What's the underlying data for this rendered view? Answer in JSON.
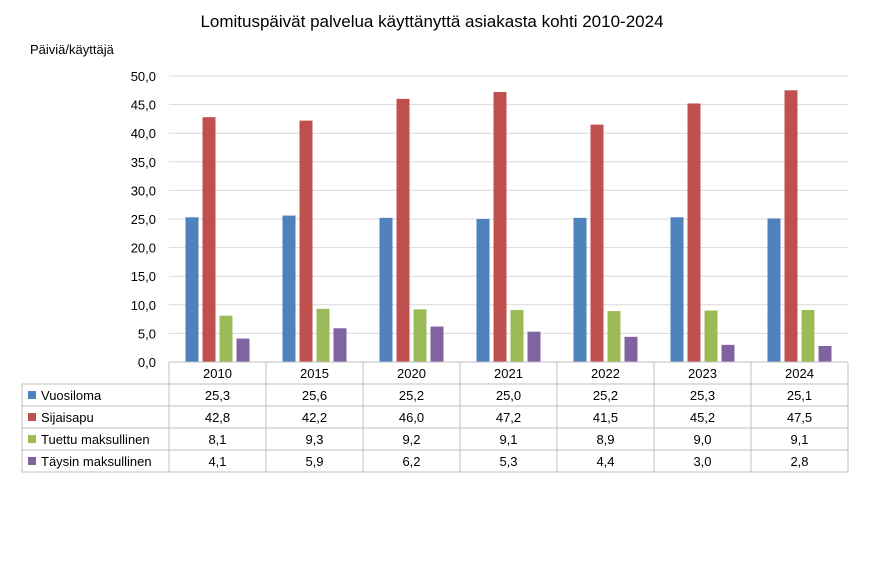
{
  "chart_data": {
    "type": "bar",
    "title": "Lomituspäivät palvelua käyttänyttä asiakasta kohti 2010-2024",
    "ylabel": "Päiviä/käyttäjä",
    "xlabel": "",
    "ylim": [
      0,
      50
    ],
    "ytick_step": 5,
    "ytick_labels": [
      "0,0",
      "5,0",
      "10,0",
      "15,0",
      "20,0",
      "25,0",
      "30,0",
      "35,0",
      "40,0",
      "45,0",
      "50,0"
    ],
    "grid": true,
    "legend": "data-table",
    "categories": [
      "2010",
      "2015",
      "2020",
      "2021",
      "2022",
      "2023",
      "2024"
    ],
    "series": [
      {
        "name": "Vuosiloma",
        "color": "#4f81bd",
        "values": [
          25.3,
          25.6,
          25.2,
          25.0,
          25.2,
          25.3,
          25.1
        ],
        "labels": [
          "25,3",
          "25,6",
          "25,2",
          "25,0",
          "25,2",
          "25,3",
          "25,1"
        ]
      },
      {
        "name": "Sijaisapu",
        "color": "#c0504d",
        "values": [
          42.8,
          42.2,
          46.0,
          47.2,
          41.5,
          45.2,
          47.5
        ],
        "labels": [
          "42,8",
          "42,2",
          "46,0",
          "47,2",
          "41,5",
          "45,2",
          "47,5"
        ]
      },
      {
        "name": "Tuettu maksullinen",
        "color": "#9bbb59",
        "values": [
          8.1,
          9.3,
          9.2,
          9.1,
          8.9,
          9.0,
          9.1
        ],
        "labels": [
          "8,1",
          "9,3",
          "9,2",
          "9,1",
          "8,9",
          "9,0",
          "9,1"
        ]
      },
      {
        "name": "Täysin maksullinen",
        "color": "#8064a2",
        "values": [
          4.1,
          5.9,
          6.2,
          5.3,
          4.4,
          3.0,
          2.8
        ],
        "labels": [
          "4,1",
          "5,9",
          "6,2",
          "5,3",
          "4,4",
          "3,0",
          "2,8"
        ]
      }
    ]
  }
}
